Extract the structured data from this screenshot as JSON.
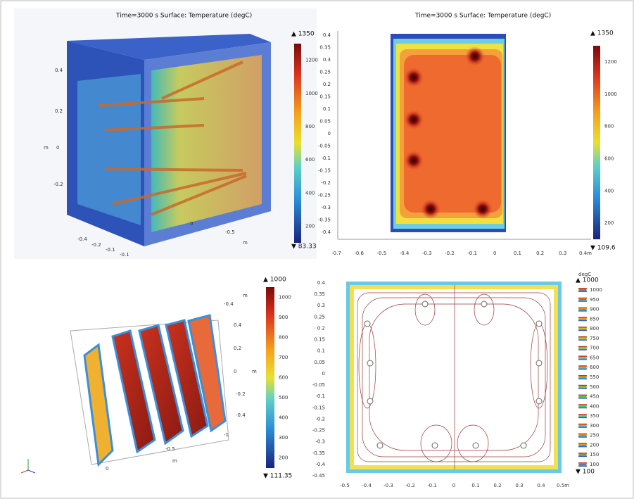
{
  "panels": [
    {
      "title": "Time=3000 s   Surface: Temperature (degC)",
      "colorbar": {
        "max": "▲ 1350",
        "ticks": [
          "1200",
          "1000",
          "800",
          "600",
          "400",
          "200"
        ],
        "min": "▼ 83.33"
      },
      "axis_texts": [
        "0.4",
        "0.2",
        "0",
        "-0.2",
        "m",
        "-0.4",
        "-0.2",
        "-0.1",
        "-0.1",
        "0",
        "-0.5",
        "m"
      ]
    },
    {
      "title": "Time=3000 s   Surface: Temperature (degC)",
      "colorbar": {
        "max": "▲ 1350",
        "ticks": [
          "1200",
          "1000",
          "800",
          "600",
          "400",
          "200"
        ],
        "min": "▼ 109.6"
      },
      "y_ticks": [
        "0.4",
        "0.35",
        "0.3",
        "0.25",
        "0.2",
        "0.15",
        "0.1",
        "0.05",
        "0",
        "-0.05",
        "-0.1",
        "-0.15",
        "-0.2",
        "-0.25",
        "-0.3",
        "-0.35",
        "-0.4"
      ],
      "x_ticks": [
        "-0.7",
        "-0.6",
        "-0.5",
        "-0.4",
        "-0.3",
        "-0.2",
        "-0.1",
        "0",
        "0.1",
        "0.2",
        "0.3",
        "0.4m"
      ]
    },
    {
      "colorbar": {
        "max": "▲ 1000",
        "ticks": [
          "1000",
          "900",
          "800",
          "700",
          "600",
          "500",
          "400",
          "300",
          "200"
        ],
        "min": "▼ 111.35"
      },
      "axis_texts": [
        "-0.4",
        "m",
        "0.4",
        "0.2",
        "0",
        "-0.2",
        "-0.4",
        "m",
        "0",
        "-0.5",
        "m",
        "-1"
      ]
    },
    {
      "colorbar": {
        "unit": "degC",
        "max": "▲ 1000",
        "ticks": [
          "1000",
          "950",
          "900",
          "850",
          "800",
          "750",
          "700",
          "650",
          "600",
          "550",
          "500",
          "450",
          "400",
          "350",
          "300",
          "250",
          "200",
          "150",
          "100"
        ],
        "min": "▼ 100"
      },
      "y_ticks": [
        "0.4",
        "0.35",
        "0.3",
        "0.25",
        "0.2",
        "0.15",
        "0.1",
        "0.05",
        "0",
        "-0.05",
        "-0.1",
        "-0.15",
        "-0.2",
        "-0.25",
        "-0.3",
        "-0.35",
        "-0.4",
        "-0.45"
      ],
      "x_ticks": [
        "-0.5",
        "-0.4",
        "-0.3",
        "-0.2",
        "-0.1",
        "0",
        "0.1",
        "0.2",
        "0.3",
        "0.4",
        "0.5m"
      ]
    }
  ]
}
